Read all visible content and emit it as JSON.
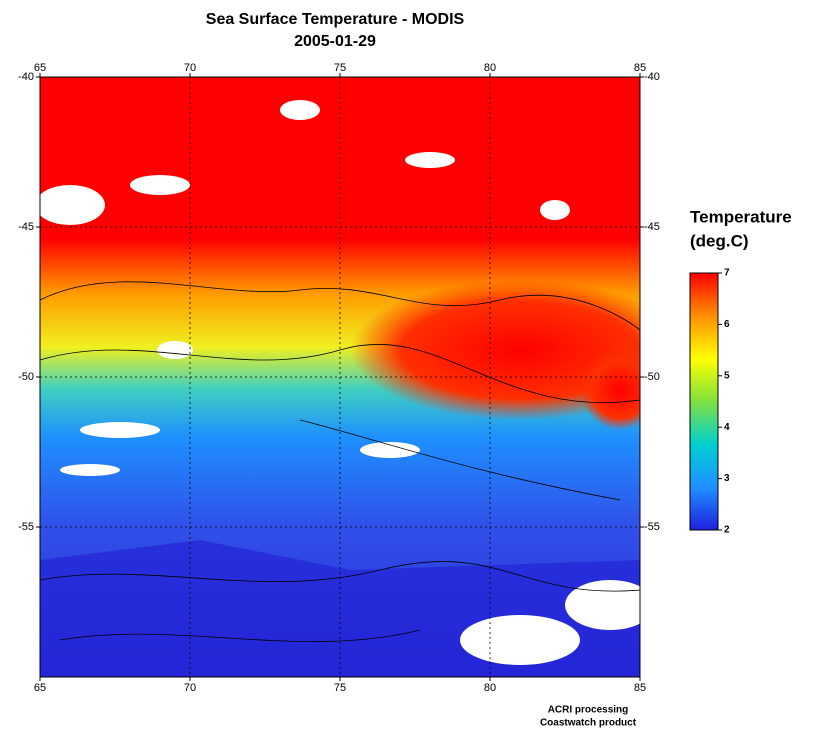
{
  "map": {
    "title": "Sea Surface Temperature - MODIS",
    "subtitle": "2005-01-29",
    "xlim": [
      65,
      85
    ],
    "ylim": [
      -60,
      -40
    ],
    "xticks": [
      65,
      70,
      75,
      80,
      85
    ],
    "yticks": [
      -40,
      -45,
      -50,
      -55
    ],
    "grid": true
  },
  "colorbar": {
    "title_lines": [
      "Temperature",
      "(deg.C)"
    ],
    "lim": [
      2,
      7
    ],
    "ticks": [
      2,
      3,
      4,
      5,
      6,
      7
    ],
    "colors": [
      "#2020e0",
      "#1e90ff",
      "#00d0d0",
      "#80e040",
      "#ffff00",
      "#ff9000",
      "#ff0000"
    ]
  },
  "footer": [
    "ACRI processing",
    "Coastwatch product"
  ]
}
